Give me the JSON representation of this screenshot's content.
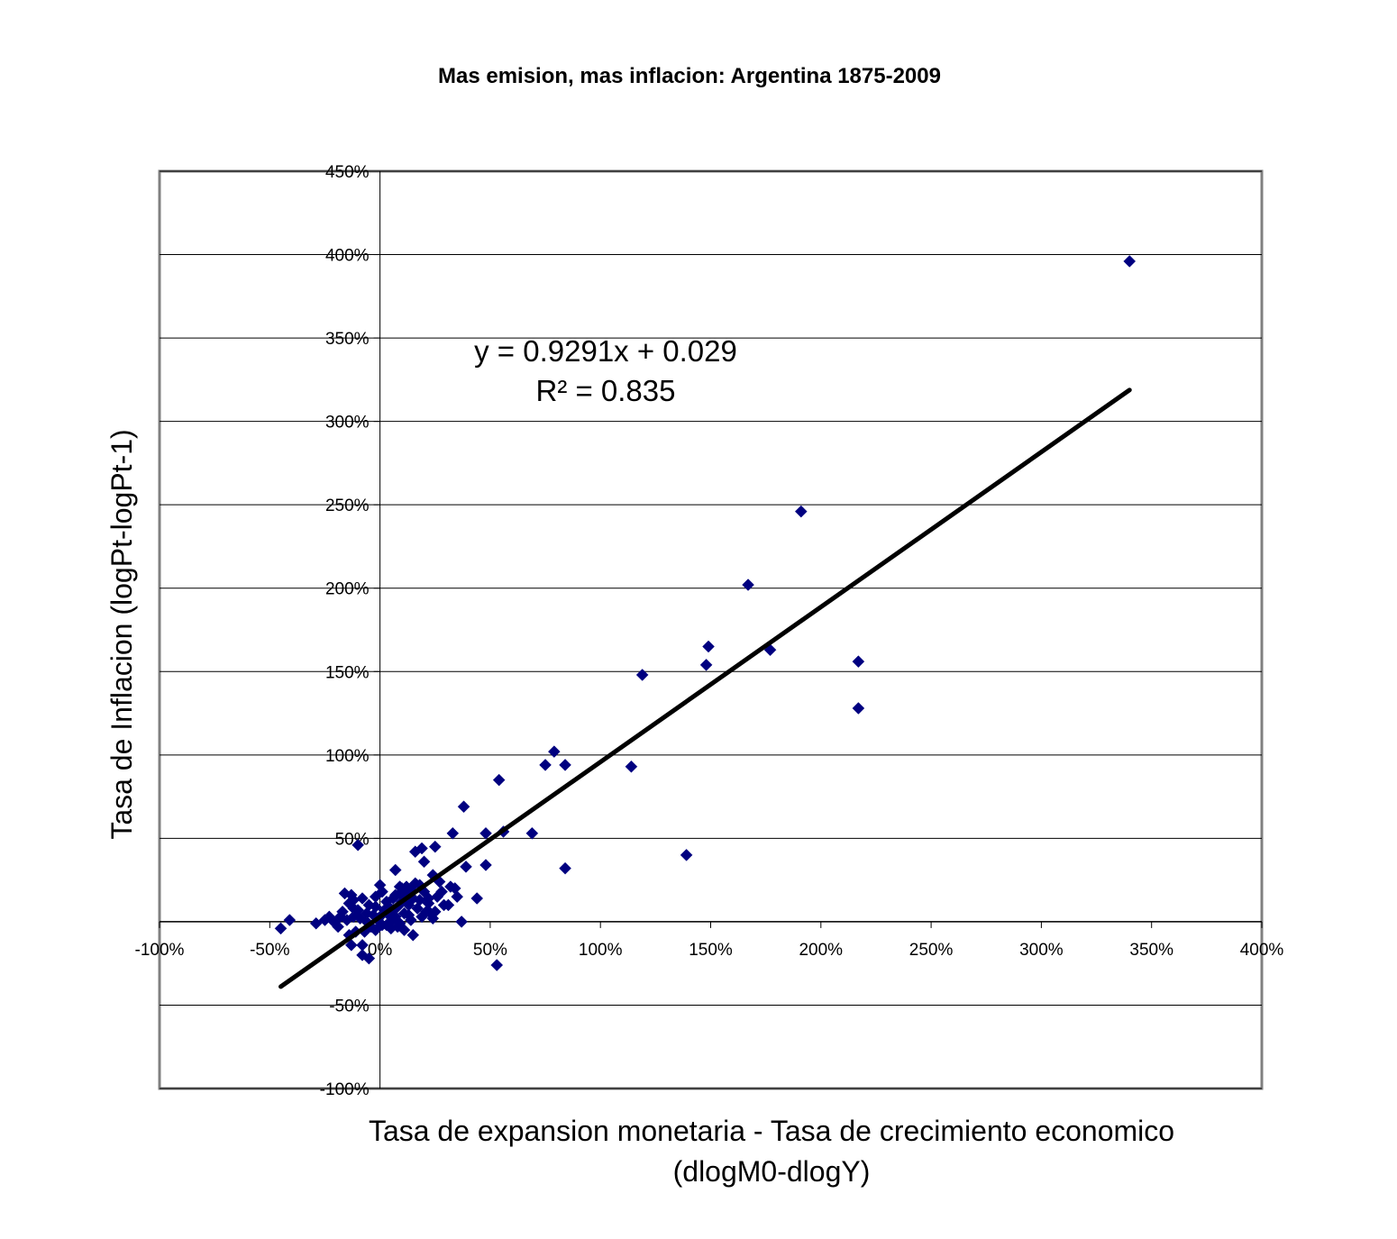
{
  "chart_data": {
    "type": "scatter",
    "title": "Mas emision, mas inflacion: Argentina 1875-2009",
    "xlabel": "Tasa de expansion monetaria - Tasa de crecimiento economico",
    "xlabel_line2": "(dlogM0-dlogY)",
    "ylabel": "Tasa de Inflacion (logPt-logPt-1)",
    "xlim": [
      -1.0,
      4.0
    ],
    "ylim": [
      -1.0,
      4.5
    ],
    "x_ticks": [
      -1.0,
      -0.5,
      0.0,
      0.5,
      1.0,
      1.5,
      2.0,
      2.5,
      3.0,
      3.5,
      4.0
    ],
    "x_tick_labels": [
      "-100%",
      "-50%",
      "0%",
      "50%",
      "100%",
      "150%",
      "200%",
      "250%",
      "300%",
      "350%",
      "400%"
    ],
    "y_ticks": [
      -1.0,
      -0.5,
      0.0,
      0.5,
      1.0,
      1.5,
      2.0,
      2.5,
      3.0,
      3.5,
      4.0,
      4.5
    ],
    "y_tick_labels": [
      "-100%",
      "-50%",
      "",
      "50%",
      "100%",
      "150%",
      "200%",
      "250%",
      "300%",
      "350%",
      "400%",
      "450%"
    ],
    "grid": "horizontal",
    "marker_color": "#000080",
    "trendline": {
      "slope": 0.9291,
      "intercept": 0.029,
      "x_range": [
        -0.45,
        3.4
      ],
      "equation": "y = 0.9291x + 0.029",
      "r_squared": "R² = 0.835",
      "color": "#000000"
    },
    "points": [
      [
        3.4,
        3.96
      ],
      [
        1.91,
        2.46
      ],
      [
        1.67,
        2.02
      ],
      [
        1.49,
        1.65
      ],
      [
        1.48,
        1.54
      ],
      [
        1.77,
        1.63
      ],
      [
        2.17,
        1.56
      ],
      [
        2.17,
        1.28
      ],
      [
        1.19,
        1.48
      ],
      [
        1.14,
        0.93
      ],
      [
        1.39,
        0.4
      ],
      [
        0.79,
        1.02
      ],
      [
        0.75,
        0.94
      ],
      [
        0.84,
        0.94
      ],
      [
        0.54,
        0.85
      ],
      [
        0.69,
        0.53
      ],
      [
        0.56,
        0.54
      ],
      [
        0.48,
        0.53
      ],
      [
        0.84,
        0.32
      ],
      [
        0.48,
        0.34
      ],
      [
        0.53,
        -0.26
      ],
      [
        0.38,
        0.69
      ],
      [
        0.33,
        0.53
      ],
      [
        0.39,
        0.33
      ],
      [
        0.44,
        0.14
      ],
      [
        0.37,
        0.0
      ],
      [
        0.25,
        0.45
      ],
      [
        0.19,
        0.44
      ],
      [
        0.16,
        0.42
      ],
      [
        0.2,
        0.36
      ],
      [
        0.32,
        0.21
      ],
      [
        0.35,
        0.15
      ],
      [
        0.31,
        0.1
      ],
      [
        0.24,
        0.28
      ],
      [
        0.22,
        0.14
      ],
      [
        0.23,
        0.05
      ],
      [
        0.18,
        0.22
      ],
      [
        0.14,
        0.19
      ],
      [
        0.13,
        0.1
      ],
      [
        0.15,
        -0.08
      ],
      [
        0.09,
        0.21
      ],
      [
        0.07,
        0.31
      ],
      [
        0.06,
        0.14
      ],
      [
        0.04,
        0.09
      ],
      [
        0.01,
        0.18
      ],
      [
        0.0,
        0.22
      ],
      [
        -0.02,
        0.15
      ],
      [
        -0.03,
        0.04
      ],
      [
        -0.05,
        0.1
      ],
      [
        -0.06,
        0.0
      ],
      [
        -0.08,
        0.14
      ],
      [
        -0.1,
        0.07
      ],
      [
        -0.11,
        -0.06
      ],
      [
        -0.12,
        0.03
      ],
      [
        -0.12,
        0.13
      ],
      [
        -0.13,
        0.16
      ],
      [
        -0.14,
        -0.08
      ],
      [
        -0.13,
        -0.14
      ],
      [
        -0.08,
        -0.14
      ],
      [
        -0.05,
        -0.22
      ],
      [
        -0.08,
        -0.2
      ],
      [
        -0.02,
        -0.05
      ],
      [
        0.03,
        -0.02
      ],
      [
        0.05,
        -0.04
      ],
      [
        0.07,
        0.03
      ],
      [
        0.09,
        -0.01
      ],
      [
        0.11,
        0.05
      ],
      [
        0.12,
        0.16
      ],
      [
        0.1,
        0.12
      ],
      [
        0.02,
        0.07
      ],
      [
        0.0,
        0.03
      ],
      [
        -0.15,
        0.01
      ],
      [
        -0.17,
        0.06
      ],
      [
        -0.18,
        0.03
      ],
      [
        -0.19,
        -0.03
      ],
      [
        -0.21,
        0.0
      ],
      [
        -0.23,
        0.03
      ],
      [
        -0.25,
        0.01
      ],
      [
        -0.29,
        -0.01
      ],
      [
        -0.14,
        0.11
      ],
      [
        -0.12,
        0.08
      ],
      [
        -0.16,
        0.17
      ],
      [
        -0.1,
        0.46
      ],
      [
        -0.41,
        0.01
      ],
      [
        -0.45,
        -0.04
      ],
      [
        0.04,
        0.04
      ],
      [
        0.06,
        0.07
      ],
      [
        0.08,
        0.09
      ],
      [
        0.13,
        0.04
      ],
      [
        0.17,
        0.08
      ],
      [
        0.19,
        0.03
      ],
      [
        0.21,
        0.06
      ],
      [
        0.22,
        0.11
      ],
      [
        0.25,
        0.06
      ],
      [
        0.26,
        0.15
      ],
      [
        0.28,
        0.18
      ],
      [
        0.27,
        0.24
      ],
      [
        0.16,
        0.23
      ],
      [
        0.12,
        0.21
      ],
      [
        0.09,
        0.17
      ],
      [
        0.03,
        0.12
      ],
      [
        -0.01,
        0.01
      ],
      [
        -0.04,
        -0.03
      ],
      [
        -0.06,
        0.05
      ],
      [
        -0.09,
        0.02
      ],
      [
        0.05,
        0.0
      ],
      [
        0.08,
        -0.03
      ],
      [
        0.11,
        -0.05
      ],
      [
        0.14,
        0.01
      ],
      [
        0.18,
        0.13
      ],
      [
        0.2,
        0.18
      ],
      [
        0.24,
        0.02
      ],
      [
        0.29,
        0.1
      ],
      [
        0.34,
        0.2
      ],
      [
        0.15,
        0.14
      ],
      [
        0.1,
        0.2
      ],
      [
        0.07,
        0.16
      ],
      [
        0.01,
        -0.02
      ],
      [
        -0.02,
        0.09
      ],
      [
        -0.07,
        -0.06
      ]
    ]
  }
}
